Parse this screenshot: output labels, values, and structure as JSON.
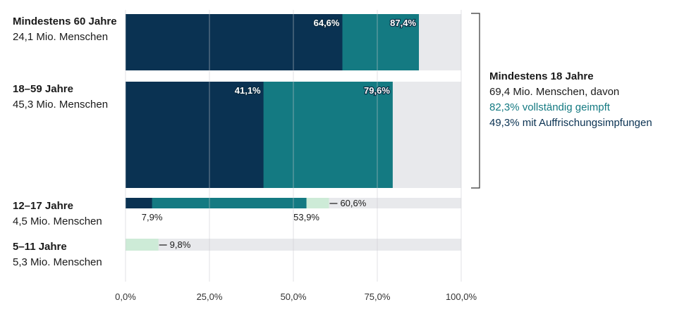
{
  "chart_data": {
    "type": "bar",
    "orientation": "horizontal",
    "xlim": [
      0,
      100
    ],
    "x_ticks": [
      "0,0%",
      "25,0%",
      "50,0%",
      "75,0%",
      "100,0%"
    ],
    "grid": "vertical",
    "colors": {
      "booster": "#0a3252",
      "full": "#147a82",
      "first": "#cdebd7",
      "background": "#e8e9ec"
    },
    "groups": [
      {
        "label": "Mindestens 60 Jahre",
        "sublabel": "24,1 Mio. Menschen",
        "booster": 64.6,
        "full": 87.4,
        "first": null,
        "booster_label": "64,6%",
        "full_label": "87,4%",
        "first_label": ""
      },
      {
        "label": "18–59 Jahre",
        "sublabel": "45,3 Mio. Menschen",
        "booster": 41.1,
        "full": 79.6,
        "first": null,
        "booster_label": "41,1%",
        "full_label": "79,6%",
        "first_label": ""
      },
      {
        "label": "12–17 Jahre",
        "sublabel": "4,5 Mio. Menschen",
        "booster": 7.9,
        "full": 53.9,
        "first": 60.6,
        "booster_label": "7,9%",
        "full_label": "53,9%",
        "first_label": "60,6%"
      },
      {
        "label": "5–11 Jahre",
        "sublabel": "5,3 Mio. Menschen",
        "booster": null,
        "full": null,
        "first": 9.8,
        "booster_label": "",
        "full_label": "",
        "first_label": "9,8%"
      }
    ],
    "annotation": {
      "title": "Mindestens 18 Jahre",
      "line1": "69,4 Mio. Menschen, davon",
      "line2": "82,3% vollständig geimpft",
      "line3": "49,3% mit Auffrischungsimpfungen"
    }
  }
}
